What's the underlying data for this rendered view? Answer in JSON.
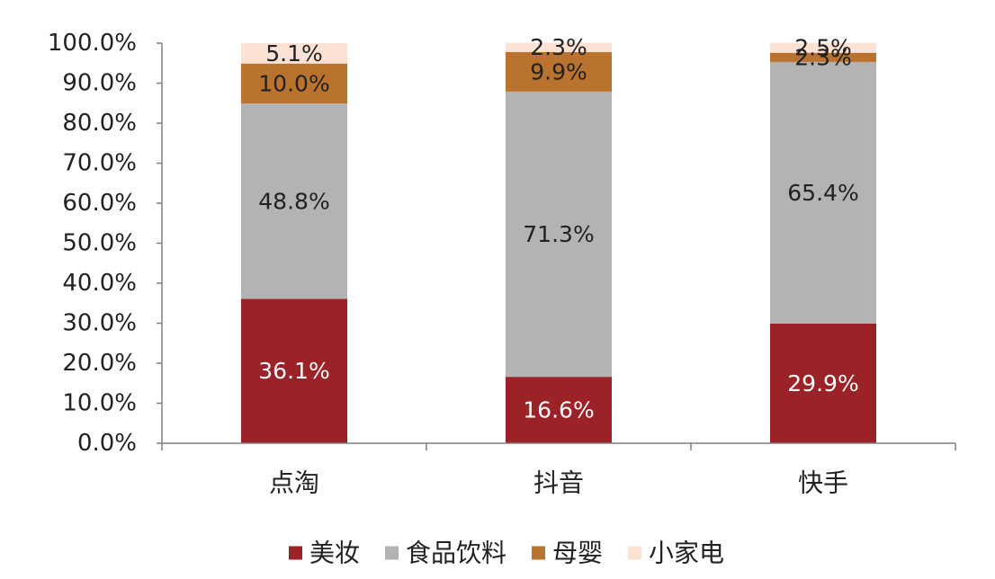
{
  "chart_data": {
    "type": "bar",
    "stacked": true,
    "categories": [
      "点淘",
      "抖音",
      "快手"
    ],
    "series": [
      {
        "name": "美妆",
        "values": [
          36.1,
          16.6,
          29.9
        ],
        "labels": [
          "36.1%",
          "16.6%",
          "29.9%"
        ],
        "color": "#9b2226",
        "label_color": "#ffffff"
      },
      {
        "name": "食品饮料",
        "values": [
          48.8,
          71.3,
          65.4
        ],
        "labels": [
          "48.8%",
          "71.3%",
          "65.4%"
        ],
        "color": "#b3b3b3",
        "label_color": "#222222"
      },
      {
        "name": "母婴",
        "values": [
          10.0,
          9.9,
          2.3
        ],
        "labels": [
          "10.0%",
          "9.9%",
          "2.3%"
        ],
        "color": "#b9732e",
        "label_color": "#222222"
      },
      {
        "name": "小家电",
        "values": [
          5.1,
          2.3,
          2.5
        ],
        "labels": [
          "5.1%",
          "2.3%",
          "2.5%"
        ],
        "color": "#fbe2d5",
        "label_color": "#222222"
      }
    ],
    "y_ticks": [
      "0.0%",
      "10.0%",
      "20.0%",
      "30.0%",
      "40.0%",
      "50.0%",
      "60.0%",
      "70.0%",
      "80.0%",
      "90.0%",
      "100.0%"
    ],
    "ylim": [
      0,
      100
    ],
    "title": "",
    "xlabel": "",
    "ylabel": "",
    "grid": false,
    "legend_position": "bottom-center",
    "axis_color": "#808080"
  }
}
